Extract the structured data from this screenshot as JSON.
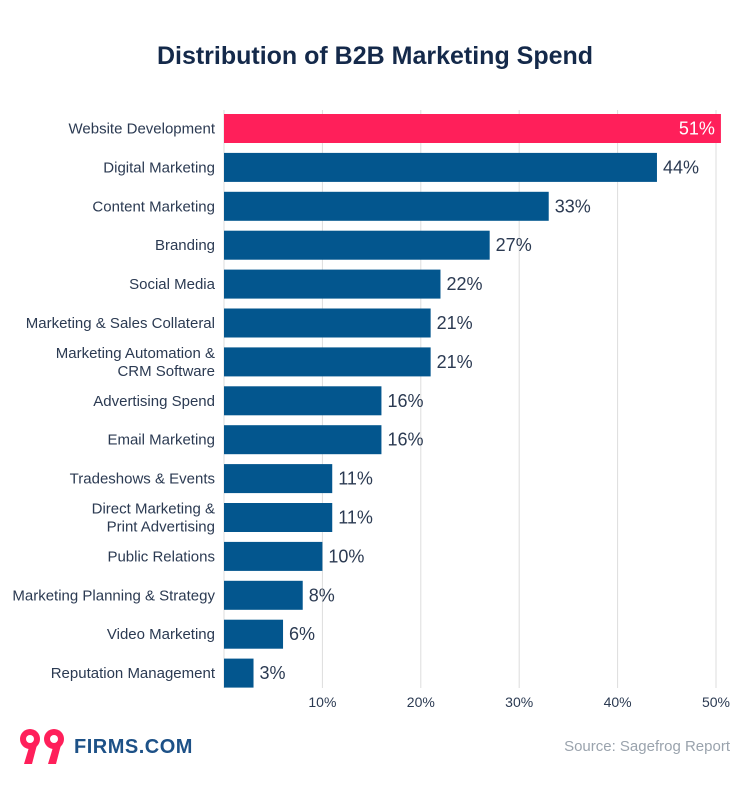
{
  "chart_data": {
    "type": "bar",
    "orientation": "horizontal",
    "title": "Distribution of B2B Marketing Spend",
    "categories": [
      [
        "Website Development"
      ],
      [
        "Digital Marketing"
      ],
      [
        "Content Marketing"
      ],
      [
        "Branding"
      ],
      [
        "Social Media"
      ],
      [
        "Marketing & Sales Collateral"
      ],
      [
        "Marketing Automation &",
        "CRM Software"
      ],
      [
        "Advertising Spend"
      ],
      [
        "Email Marketing"
      ],
      [
        "Tradeshows & Events"
      ],
      [
        "Direct Marketing &",
        "Print Advertising"
      ],
      [
        "Public Relations"
      ],
      [
        "Marketing Planning & Strategy"
      ],
      [
        "Video Marketing"
      ],
      [
        "Reputation Management"
      ]
    ],
    "values": [
      51,
      44,
      33,
      27,
      22,
      21,
      21,
      16,
      16,
      11,
      11,
      10,
      8,
      6,
      3
    ],
    "value_labels": [
      "51%",
      "44%",
      "33%",
      "27%",
      "22%",
      "21%",
      "21%",
      "16%",
      "16%",
      "11%",
      "11%",
      "10%",
      "8%",
      "6%",
      "3%"
    ],
    "xlim": [
      0,
      50
    ],
    "xticks": [
      10,
      20,
      30,
      40,
      50
    ],
    "xtick_labels": [
      "10%",
      "20%",
      "30%",
      "40%",
      "50%"
    ],
    "grid": true,
    "colors": {
      "highlight": "#ff1f5a",
      "bar": "#03568e",
      "grid": "#dddddd"
    }
  },
  "footer": {
    "logo_number": "99",
    "logo_text": "FIRMS.COM",
    "source": "Source: Sagefrog Report"
  }
}
